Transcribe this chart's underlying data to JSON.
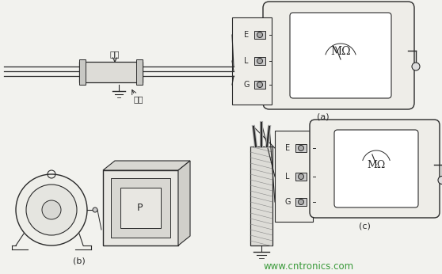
{
  "background_color": "#f2f2ee",
  "watermark": "www.cntronics.com",
  "watermark_color": "#3a9a3a",
  "watermark_fontsize": 8.5,
  "labels": {
    "gang_guan": "鉢管",
    "dao_xian": "导线",
    "a_label": "(a)",
    "b_label": "(b)",
    "c_label": "(c)",
    "E": "E",
    "L": "L",
    "G": "G",
    "MOmega": "MΩ",
    "P": "P"
  },
  "figsize": [
    5.58,
    3.46
  ],
  "dpi": 100
}
